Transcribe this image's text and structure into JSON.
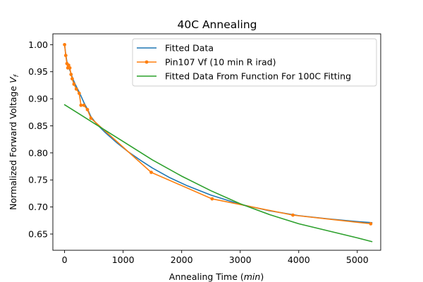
{
  "chart_data": {
    "type": "line",
    "title": "40C Annealing",
    "xlabel": "Annealing Time (min)",
    "ylabel": "Normalized Forward Voltage V_f",
    "xlim": [
      -200,
      5400
    ],
    "ylim": [
      0.62,
      1.02
    ],
    "xticks": [
      0,
      1000,
      2000,
      3000,
      4000,
      5000
    ],
    "yticks": [
      0.65,
      0.7,
      0.75,
      0.8,
      0.85,
      0.9,
      0.95,
      1.0
    ],
    "xtick_labels": [
      "0",
      "1000",
      "2000",
      "3000",
      "4000",
      "5000"
    ],
    "ytick_labels": [
      "0.65",
      "0.70",
      "0.75",
      "0.80",
      "0.85",
      "0.90",
      "0.95",
      "1.00"
    ],
    "grid": false,
    "legend_position": "top-right",
    "series": [
      {
        "name": "Fitted Data",
        "color": "#1f77b4",
        "marker": "none",
        "x": [
          0,
          20,
          45,
          75,
          100,
          140,
          190,
          260,
          330,
          400,
          450,
          550,
          700,
          900,
          1100,
          1300,
          1500,
          1800,
          2100,
          2500,
          3000,
          3500,
          4000,
          4500,
          5000,
          5250
        ],
        "y": [
          1.0,
          0.982,
          0.965,
          0.957,
          0.95,
          0.937,
          0.925,
          0.91,
          0.893,
          0.879,
          0.867,
          0.853,
          0.837,
          0.818,
          0.801,
          0.786,
          0.772,
          0.754,
          0.739,
          0.722,
          0.705,
          0.693,
          0.684,
          0.678,
          0.673,
          0.671
        ]
      },
      {
        "name": "Pin107 Vf (10 min R irad)",
        "color": "#ff7f0e",
        "marker": "circle",
        "x": [
          0,
          20,
          40,
          55,
          70,
          90,
          110,
          130,
          160,
          200,
          250,
          280,
          330,
          390,
          450,
          1480,
          2520,
          3900,
          5230
        ],
        "y": [
          1.0,
          0.98,
          0.965,
          0.957,
          0.962,
          0.957,
          0.945,
          0.937,
          0.927,
          0.918,
          0.91,
          0.888,
          0.888,
          0.88,
          0.864,
          0.764,
          0.715,
          0.685,
          0.669
        ]
      },
      {
        "name": "Fitted Data From Function For 100C Fitting",
        "color": "#2ca02c",
        "marker": "none",
        "x": [
          0,
          250,
          500,
          750,
          1000,
          1500,
          2000,
          2500,
          3000,
          3500,
          4000,
          4500,
          5000,
          5250
        ],
        "y": [
          0.889,
          0.872,
          0.855,
          0.838,
          0.821,
          0.787,
          0.757,
          0.73,
          0.706,
          0.686,
          0.669,
          0.656,
          0.643,
          0.636
        ]
      }
    ]
  }
}
